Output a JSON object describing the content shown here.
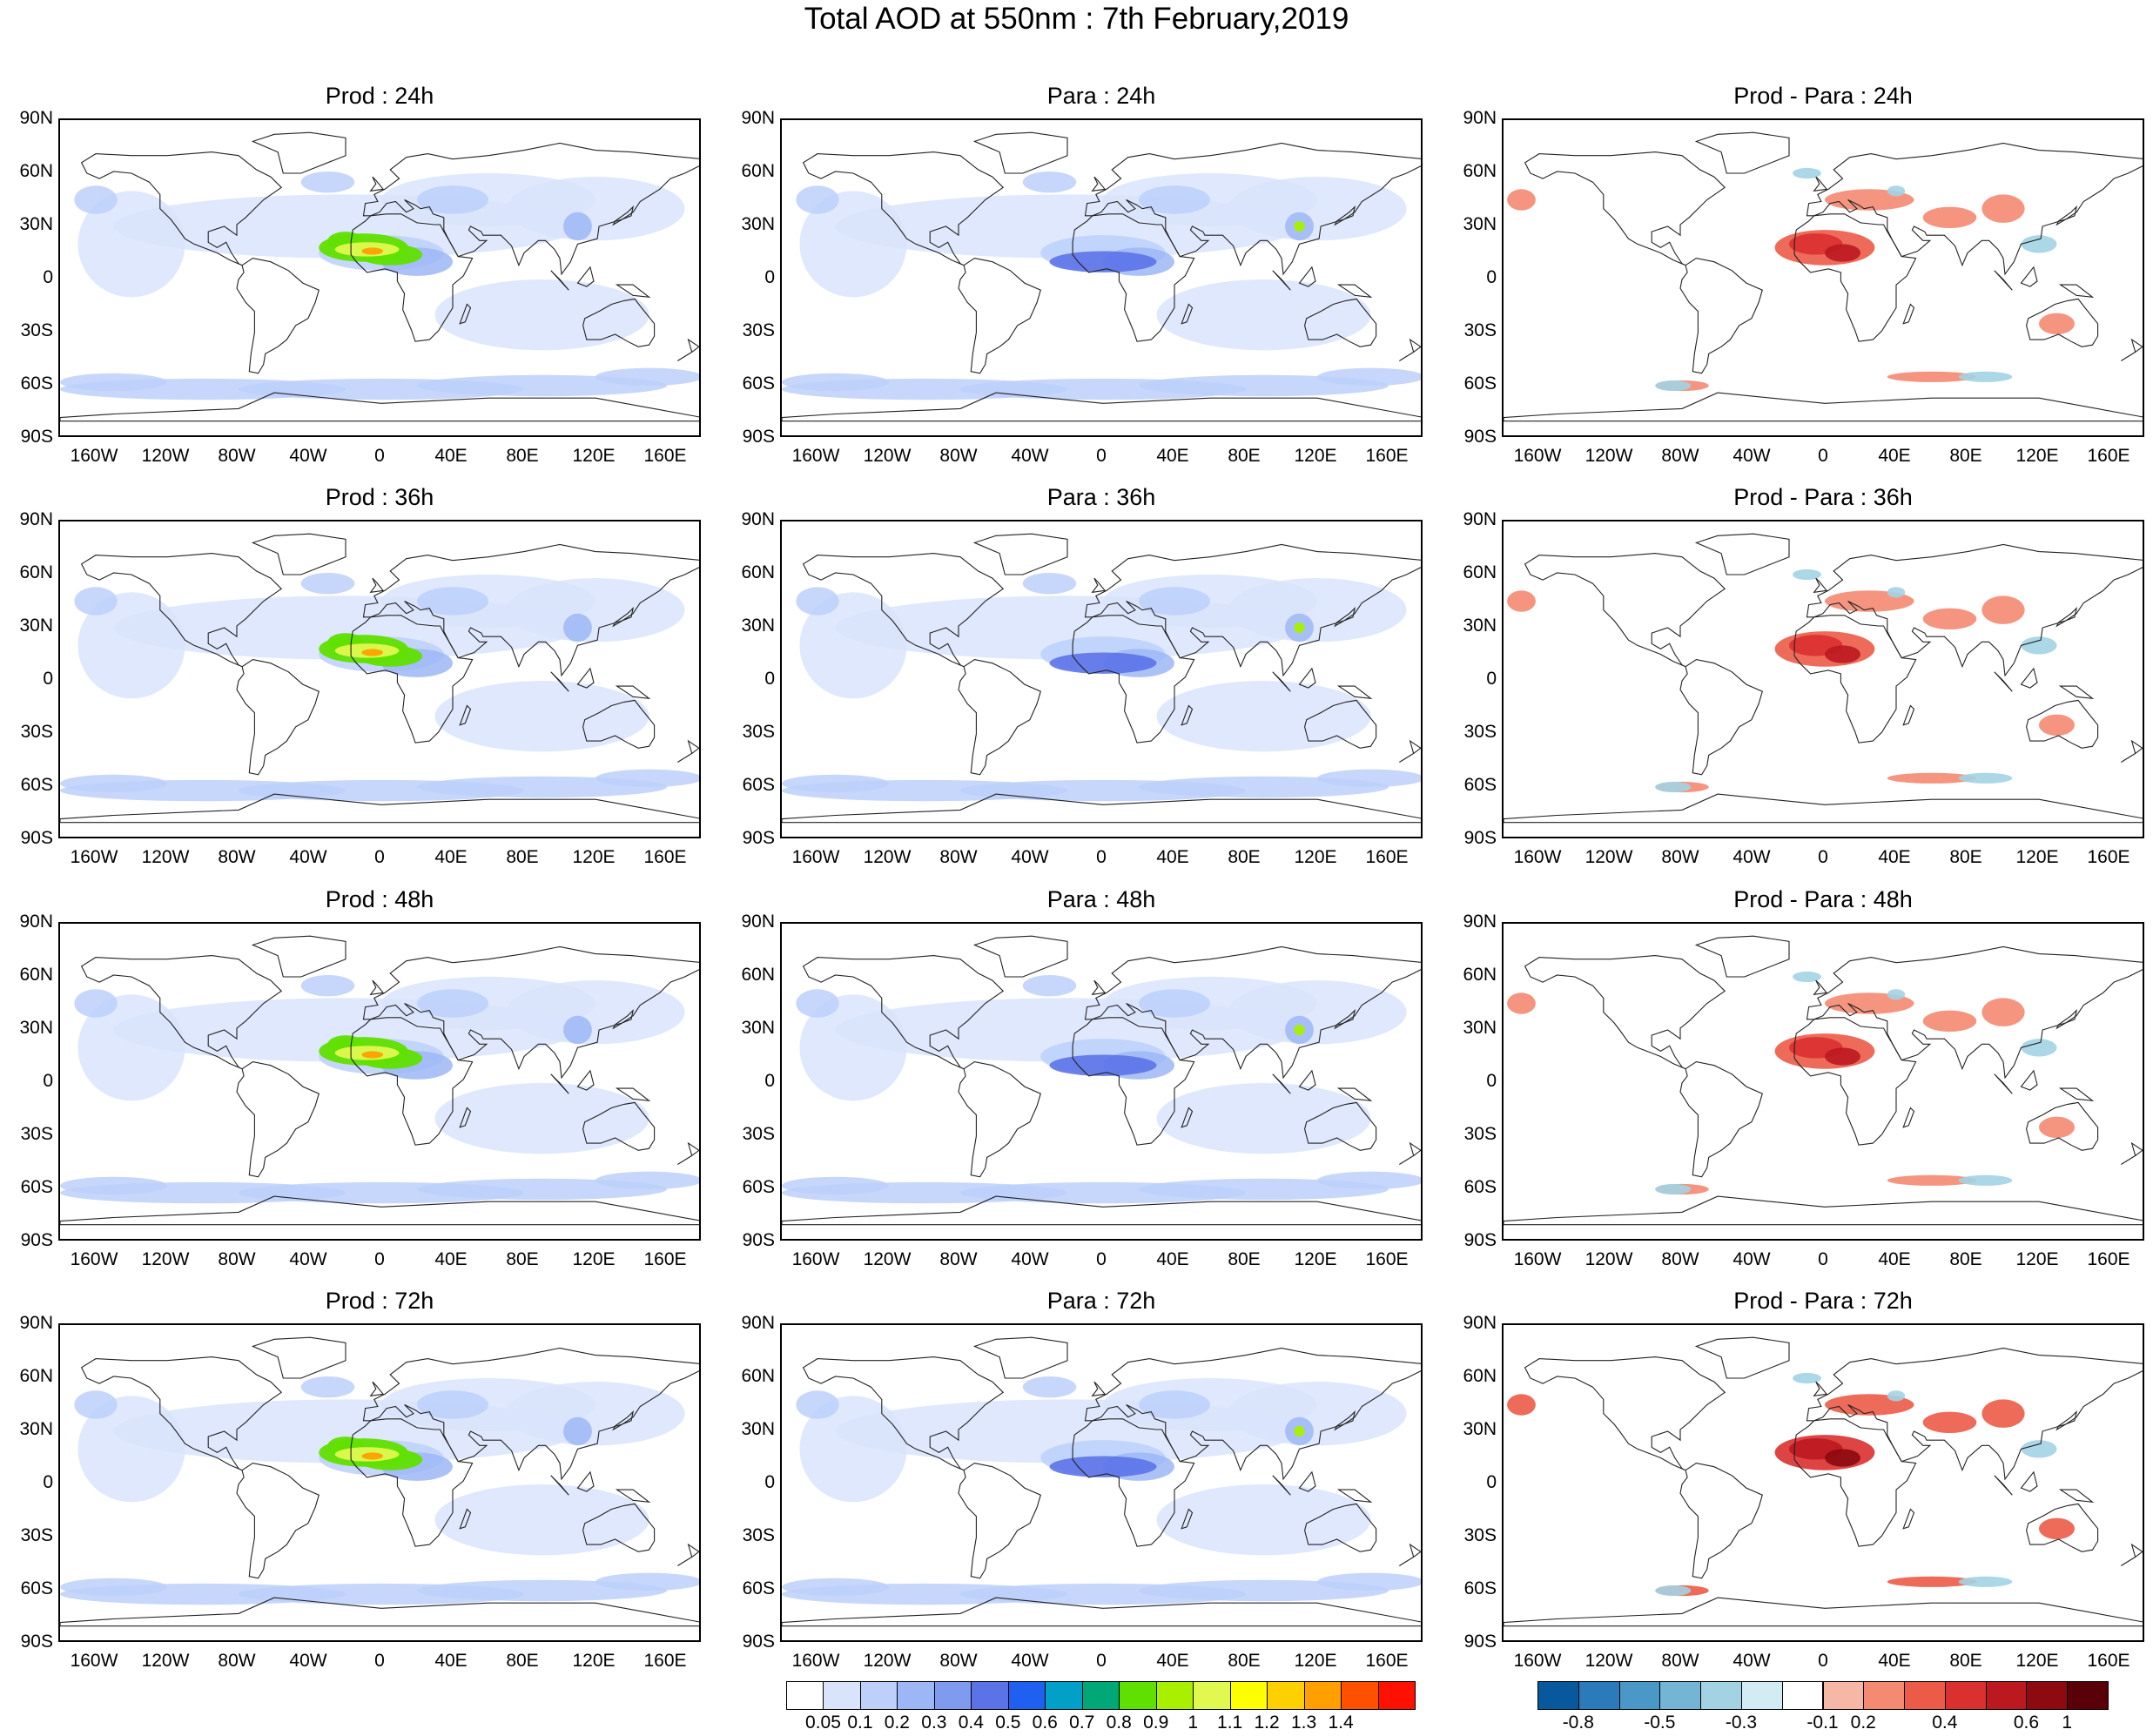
{
  "title": "Total AOD at 550nm : 7th February,2019",
  "lat_labels": [
    "90N",
    "60N",
    "30N",
    "0",
    "30S",
    "60S",
    "90S"
  ],
  "lon_labels": [
    "160W",
    "120W",
    "80W",
    "40W",
    "0",
    "40E",
    "80E",
    "120E",
    "160E"
  ],
  "panels": [
    {
      "title": "Prod : 24h",
      "kind": "aod",
      "hot": 0.45
    },
    {
      "title": "Para : 24h",
      "kind": "aod",
      "hot": 0.25
    },
    {
      "title": "Prod - Para : 24h",
      "kind": "diff",
      "hot": 0.6
    },
    {
      "title": "Prod : 36h",
      "kind": "aod",
      "hot": 0.45
    },
    {
      "title": "Para : 36h",
      "kind": "aod",
      "hot": 0.25
    },
    {
      "title": "Prod - Para : 36h",
      "kind": "diff",
      "hot": 0.6
    },
    {
      "title": "Prod : 48h",
      "kind": "aod",
      "hot": 0.5
    },
    {
      "title": "Para : 48h",
      "kind": "aod",
      "hot": 0.3
    },
    {
      "title": "Prod - Para : 48h",
      "kind": "diff",
      "hot": 0.65
    },
    {
      "title": "Prod : 72h",
      "kind": "aod",
      "hot": 0.55
    },
    {
      "title": "Para : 72h",
      "kind": "aod",
      "hot": 0.35
    },
    {
      "title": "Prod - Para : 72h",
      "kind": "diff",
      "hot": 0.7
    }
  ],
  "aod_colorbar": {
    "labels": [
      "0.05",
      "0.1",
      "0.2",
      "0.3",
      "0.4",
      "0.5",
      "0.6",
      "0.7",
      "0.8",
      "0.9",
      "1",
      "1.1",
      "1.2",
      "1.3",
      "1.4"
    ],
    "colors": [
      "#ffffff",
      "#d9e4fb",
      "#bcd0fa",
      "#9db7f6",
      "#7f9bf0",
      "#5c73e8",
      "#2060f0",
      "#00a0c8",
      "#00a878",
      "#60e000",
      "#a8f000",
      "#e0f850",
      "#ffff00",
      "#ffd000",
      "#ffa000",
      "#ff5000",
      "#ff1000"
    ]
  },
  "diff_colorbar": {
    "labels": [
      "-0.8",
      "-0.5",
      "-0.3",
      "-0.1",
      "0.2",
      "0.4",
      "0.6",
      "1"
    ],
    "colors": [
      "#08589e",
      "#2b7bba",
      "#4a98c8",
      "#74b5d6",
      "#a3d3e3",
      "#d2ecf4",
      "#ffffff",
      "#f7b7a6",
      "#f48a72",
      "#ec5b48",
      "#da3030",
      "#bb1820",
      "#8c0a10",
      "#5a0008"
    ]
  }
}
